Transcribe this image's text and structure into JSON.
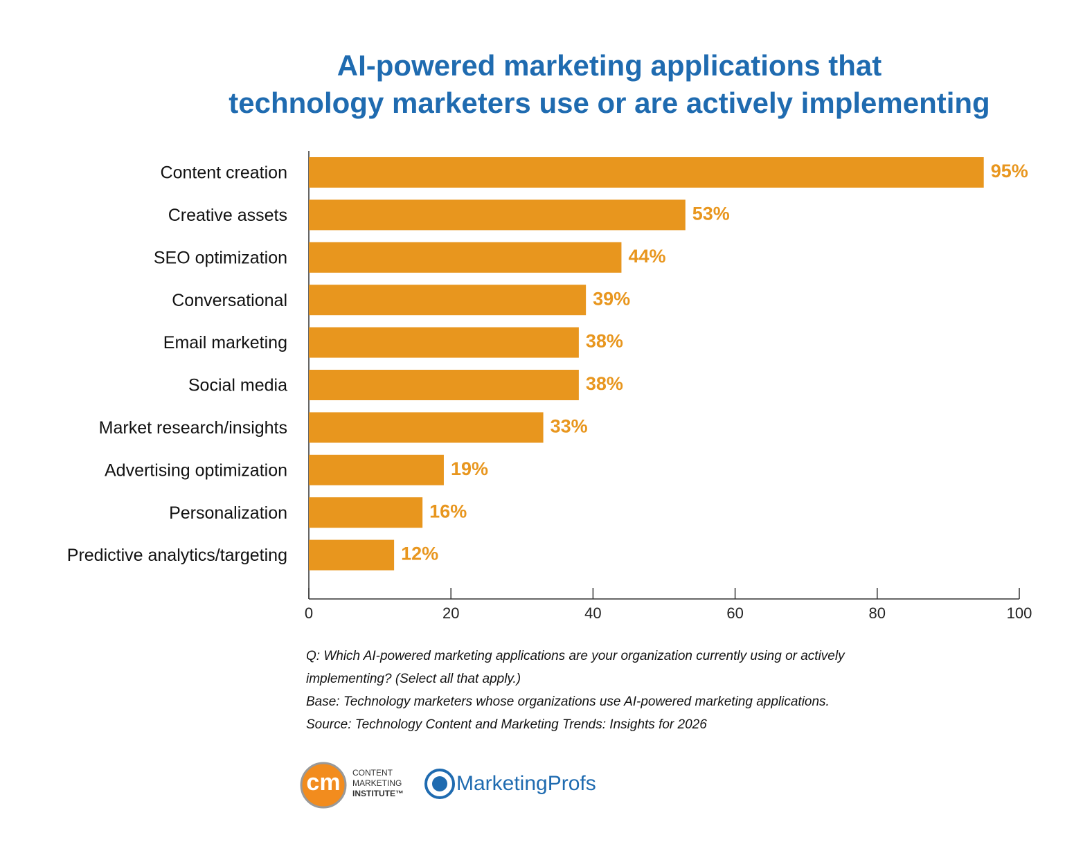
{
  "chart_data": {
    "type": "bar",
    "orientation": "horizontal",
    "title": [
      "AI-powered marketing applications that",
      "technology marketers use or are actively implementing"
    ],
    "categories": [
      "Content creation",
      "Creative assets",
      "SEO optimization",
      "Conversational",
      "Email marketing",
      "Social media",
      "Market research/insights",
      "Advertising optimization",
      "Personalization",
      "Predictive analytics/targeting"
    ],
    "values": [
      95,
      53,
      44,
      39,
      38,
      38,
      33,
      19,
      16,
      12
    ],
    "value_labels": [
      "95%",
      "53%",
      "44%",
      "39%",
      "38%",
      "38%",
      "33%",
      "19%",
      "16%",
      "12%"
    ],
    "color": "#e8961e",
    "xlim": [
      0,
      100
    ],
    "xticks": [
      0,
      20,
      40,
      60,
      80,
      100
    ],
    "grid": false,
    "notes": [
      "Q: Which AI-powered marketing applications are your organization currently using or actively",
      "implementing? (Select all that apply.)",
      "Base: Technology marketers whose organizations use AI-powered marketing applications.",
      "Source: Technology Content and Marketing Trends: Insights for 2026"
    ]
  },
  "logos": {
    "cmi_mark": "cm",
    "cmi_lines": [
      "CONTENT",
      "MARKETING",
      "INSTITUTE™"
    ],
    "mprofs": "MarketingProfs"
  }
}
